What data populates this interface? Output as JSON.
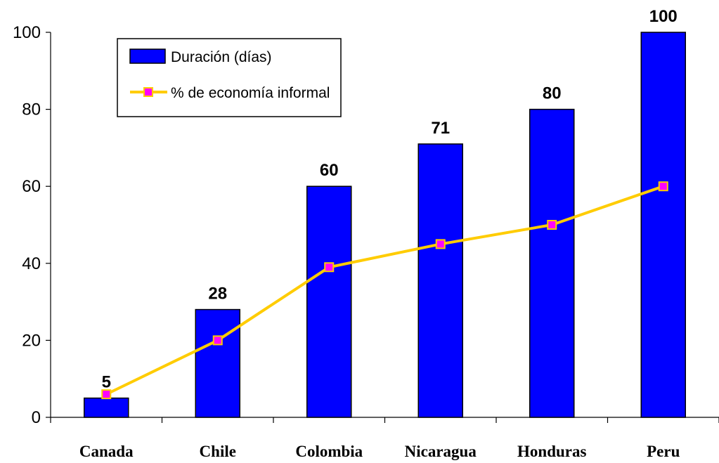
{
  "chart_data": {
    "type": "bar",
    "categories": [
      "Canada",
      "Chile",
      "Colombia",
      "Nicaragua",
      "Honduras",
      "Peru"
    ],
    "series": [
      {
        "name": "Duración (días)",
        "type": "bar",
        "color": "#0000FF",
        "values": [
          5,
          28,
          60,
          71,
          80,
          100
        ],
        "data_labels": [
          "5",
          "28",
          "60",
          "71",
          "80",
          "100"
        ]
      },
      {
        "name": "% de economía informal",
        "type": "line",
        "color": "#FFCC00",
        "marker_color": "#FF00FF",
        "values": [
          6,
          20,
          39,
          45,
          50,
          60
        ]
      }
    ],
    "title": "",
    "xlabel": "",
    "ylabel": "",
    "ylim": [
      0,
      100
    ],
    "yticks": [
      0,
      20,
      40,
      60,
      80,
      100
    ],
    "grid": false,
    "legend_position": "top-left"
  }
}
